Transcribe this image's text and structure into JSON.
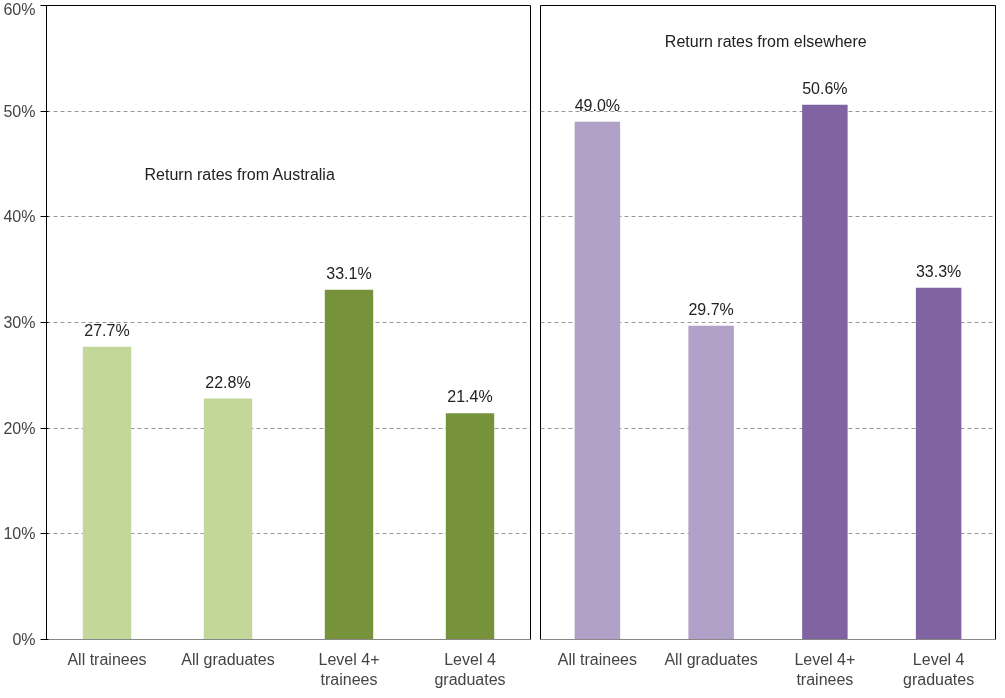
{
  "chart_data": [
    {
      "type": "bar",
      "categories": [
        "All trainees",
        "All graduates",
        "Level 4+\ntrainees",
        "Level 4\ngraduates"
      ],
      "values": [
        27.7,
        22.8,
        33.1,
        21.4
      ],
      "colors": [
        "#c4d79b",
        "#c4d79b",
        "#76933c",
        "#76933c"
      ],
      "value_labels": [
        "27.7%",
        "22.8%",
        "33.1%",
        "21.4%"
      ],
      "annotations": [
        "Return rates from Australia"
      ],
      "ylim": [
        0,
        60
      ],
      "yticks": [
        {
          "value": 0,
          "label": "0%"
        },
        {
          "value": 10,
          "label": "10%"
        },
        {
          "value": 20,
          "label": "20%"
        },
        {
          "value": 30,
          "label": "30%"
        },
        {
          "value": 40,
          "label": "40%"
        },
        {
          "value": 50,
          "label": "50%"
        },
        {
          "value": 60,
          "label": "60%"
        }
      ],
      "grid": "y"
    },
    {
      "type": "bar",
      "categories": [
        "All trainees",
        "All graduates",
        "Level 4+\ntrainees",
        "Level 4\ngraduates"
      ],
      "values": [
        49.0,
        29.7,
        50.6,
        33.3
      ],
      "colors": [
        "#b1a0c7",
        "#b1a0c7",
        "#8064a2",
        "#8064a2"
      ],
      "value_labels": [
        "49.0%",
        "29.7%",
        "50.6%",
        "33.3%"
      ],
      "annotations": [
        "Return rates from  elsewhere"
      ],
      "ylim": [
        0,
        60
      ],
      "yticks": [
        {
          "value": 0,
          "label": null
        },
        {
          "value": 10,
          "label": null
        },
        {
          "value": 20,
          "label": null
        },
        {
          "value": 30,
          "label": null
        },
        {
          "value": 40,
          "label": null
        },
        {
          "value": 50,
          "label": null
        },
        {
          "value": 60,
          "label": null
        }
      ],
      "grid": "y",
      "tick_labels": "x"
    }
  ]
}
